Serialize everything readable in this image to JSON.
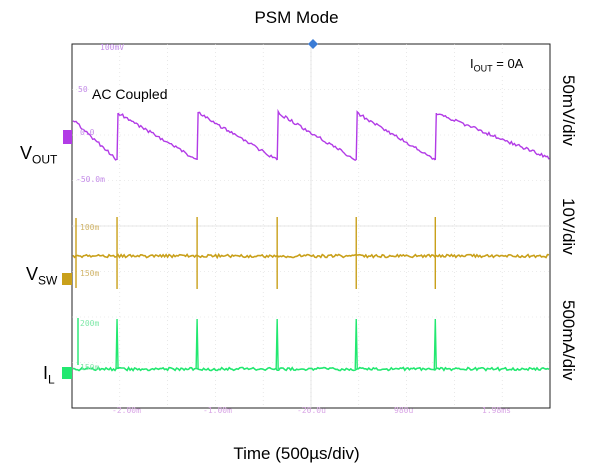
{
  "title": "PSM Mode",
  "xlabel": "Time (500µs/div)",
  "annotations": {
    "iout_prefix": "I",
    "iout_sub": "OUT",
    "iout_suffix": " = 0A",
    "ac_coupled": "AC Coupled"
  },
  "channels": [
    {
      "name_main": "V",
      "name_sub": "OUT",
      "scale": "50mV/div",
      "color": "#b23be6"
    },
    {
      "name_main": "V",
      "name_sub": "SW",
      "scale": "10V/div",
      "color": "#c9a01a"
    },
    {
      "name_main": "I",
      "name_sub": "L",
      "scale": "500mA/div",
      "color": "#22e870"
    }
  ],
  "scope_labels": {
    "vout_ticks": [
      "100mV",
      "50",
      "0.0",
      "-50.0m"
    ],
    "vsw_ticks": [
      "100m",
      "150m"
    ],
    "il_ticks": [
      "200m",
      "150m"
    ],
    "time_ticks": [
      "-2.00m",
      "-1.00m",
      "-20.0u",
      "980u",
      "1.98ms"
    ]
  },
  "chart_data": {
    "type": "line",
    "time_div": "500µs/div",
    "events_time_us": [
      225,
      625,
      1025,
      1420,
      1815
    ],
    "series": [
      {
        "name": "VOUT",
        "scale": "50mV/div",
        "coupling": "AC",
        "shape": "sawtooth",
        "ripple_mV": 50
      },
      {
        "name": "VSW",
        "scale": "10V/div",
        "shape": "switching pulses at events"
      },
      {
        "name": "IL",
        "scale": "500mA/div",
        "shape": "current spikes at events"
      }
    ]
  }
}
